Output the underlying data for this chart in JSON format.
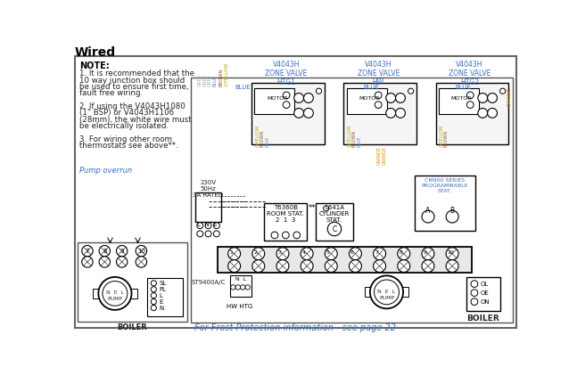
{
  "title": "Wired",
  "bg_color": "#ffffff",
  "note_text": "NOTE:",
  "note_lines": [
    "1. It is recommended that the",
    "10 way junction box should",
    "be used to ensure first time,",
    "fault free wiring.",
    "",
    "2. If using the V4043H1080",
    "(1\" BSP) or V4043H1106",
    "(28mm), the white wire must",
    "be electrically isolated.",
    "",
    "3. For wiring other room",
    "thermostats see above**."
  ],
  "pump_overrun_label": "Pump overrun",
  "frost_text": "For Frost Protection information - see page 22",
  "supply_label": "230V\n50Hz\n3A RATED",
  "lne_label": "L  N  E",
  "junction_numbers": [
    "1",
    "2",
    "3",
    "4",
    "5",
    "6",
    "7",
    "8",
    "9",
    "10"
  ],
  "st9400_label": "ST9400A/C",
  "hw_htg_label": "HW HTG",
  "boiler_label": "BOILER",
  "motor_label": "MOTOR",
  "text_blue": "#3a6fbf",
  "text_orange": "#cc6600",
  "text_gray": "#888888",
  "text_brown": "#7a4010",
  "text_gyellow": "#888800",
  "wire_gray": "#aaaaaa",
  "wire_blue": "#5588dd",
  "wire_brown": "#9b5a20",
  "wire_gyellow": "#aaaa00",
  "wire_orange": "#dd8800"
}
